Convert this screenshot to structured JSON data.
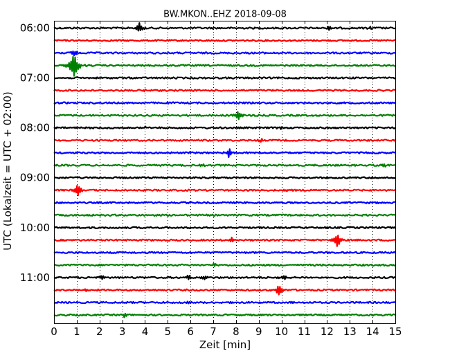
{
  "chart_data": {
    "type": "line",
    "title": "BW.MKON..EHZ 2018-09-08",
    "xlabel": "Zeit  [min]",
    "ylabel": "UTC (Lokalzeit = UTC + 02:00)",
    "xlim": [
      0,
      15
    ],
    "x_ticks": [
      "0",
      "1",
      "2",
      "3",
      "4",
      "5",
      "6",
      "7",
      "8",
      "9",
      "10",
      "11",
      "12",
      "13",
      "14",
      "15"
    ],
    "y_tick_labels": [
      "06:00",
      "07:00",
      "08:00",
      "09:00",
      "10:00",
      "11:00"
    ],
    "grid": "vertical-dotted",
    "trace_interval_min": 15,
    "trace_colors": [
      "#000000",
      "#ff0000",
      "#0000ff",
      "#008000"
    ],
    "traces": [
      {
        "start": "06:00",
        "events": [
          {
            "t": 3.75,
            "amp": 8
          },
          {
            "t": 12.1,
            "amp": 3
          },
          {
            "t": 13.9,
            "amp": 2
          }
        ]
      },
      {
        "start": "06:15",
        "events": []
      },
      {
        "start": "06:30",
        "events": [
          {
            "t": 0.9,
            "amp": 6
          }
        ]
      },
      {
        "start": "06:45",
        "events": [
          {
            "t": 0.88,
            "amp": 20
          }
        ]
      },
      {
        "start": "07:00",
        "events": []
      },
      {
        "start": "07:15",
        "events": [
          {
            "t": 4.0,
            "amp": 2
          }
        ]
      },
      {
        "start": "07:30",
        "events": []
      },
      {
        "start": "07:45",
        "events": [
          {
            "t": 8.1,
            "amp": 8
          }
        ]
      },
      {
        "start": "08:00",
        "events": [
          {
            "t": 4.0,
            "amp": 2
          },
          {
            "t": 10.0,
            "amp": 2
          }
        ]
      },
      {
        "start": "08:15",
        "events": [
          {
            "t": 9.1,
            "amp": 3
          }
        ]
      },
      {
        "start": "08:30",
        "events": [
          {
            "t": 7.7,
            "amp": 7
          }
        ]
      },
      {
        "start": "08:45",
        "events": [
          {
            "t": 14.5,
            "amp": 4
          },
          {
            "t": 6.5,
            "amp": 2
          }
        ]
      },
      {
        "start": "09:00",
        "events": []
      },
      {
        "start": "09:15",
        "events": [
          {
            "t": 1.05,
            "amp": 10
          },
          {
            "t": 10.3,
            "amp": 2
          }
        ]
      },
      {
        "start": "09:30",
        "events": []
      },
      {
        "start": "09:45",
        "events": []
      },
      {
        "start": "10:00",
        "events": []
      },
      {
        "start": "10:15",
        "events": [
          {
            "t": 7.8,
            "amp": 5
          },
          {
            "t": 12.45,
            "amp": 11
          }
        ]
      },
      {
        "start": "10:30",
        "events": []
      },
      {
        "start": "10:45",
        "events": [
          {
            "t": 7.05,
            "amp": 3
          }
        ]
      },
      {
        "start": "11:00",
        "events": [
          {
            "t": 2.1,
            "amp": 4
          },
          {
            "t": 5.9,
            "amp": 4
          },
          {
            "t": 6.6,
            "amp": 3
          },
          {
            "t": 10.1,
            "amp": 4
          },
          {
            "t": 12.0,
            "amp": 2
          }
        ]
      },
      {
        "start": "11:15",
        "events": [
          {
            "t": 1.4,
            "amp": 4
          },
          {
            "t": 9.9,
            "amp": 10
          }
        ]
      },
      {
        "start": "11:30",
        "events": [
          {
            "t": 5.9,
            "amp": 3
          },
          {
            "t": 10.5,
            "amp": 2
          }
        ]
      },
      {
        "start": "11:45",
        "events": [
          {
            "t": 3.1,
            "amp": 4
          }
        ]
      }
    ]
  }
}
